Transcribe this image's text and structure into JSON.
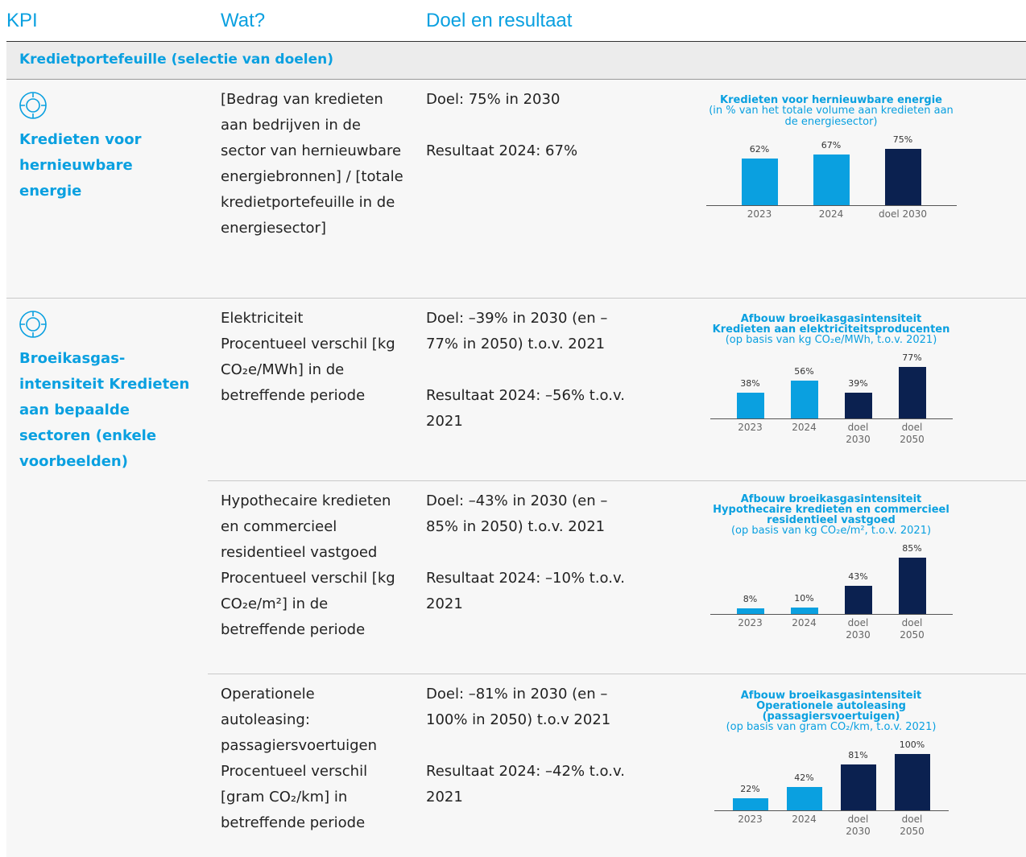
{
  "header": {
    "kpi": "KPI",
    "wat": "Wat?",
    "doel": "Doel en resultaat"
  },
  "section": "Kredietportefeuille (selectie van doelen)",
  "kpis": [
    {
      "label": "Kredieten voor hernieuwbare energie",
      "items": [
        {
          "wat": [
            "[Bedrag van kredieten aan bedrijven in de sector van hernieuwbare energiebronnen] / [totale kredietportefeuille in de energiesector]"
          ],
          "doel": "Doel: 75% in 2030",
          "resultaat": "Resultaat 2024: 67%",
          "chart": {
            "type": "bar",
            "title": [
              "Kredieten voor hernieuwbare energie"
            ],
            "subtitle": "(in % van het totale volume aan kredieten aan de energiesector)",
            "categories": [
              "2023",
              "2024",
              "doel 2030"
            ],
            "values": [
              62,
              67,
              75
            ],
            "value_labels": [
              "62%",
              "67%",
              "75%"
            ],
            "colors": [
              "#0aa0e0",
              "#0aa0e0",
              "#0b2150"
            ]
          }
        }
      ]
    },
    {
      "label": "Broeikasgas-intensiteit Kredieten aan bepaalde sectoren (enkele voorbeelden)",
      "items": [
        {
          "wat": [
            "Elektriciteit",
            "Procentueel verschil [kg CO₂e/MWh] in de betreffende periode"
          ],
          "doel": "Doel: –39% in 2030 (en –77% in 2050) t.o.v. 2021",
          "resultaat": "Resultaat 2024: –56% t.o.v. 2021",
          "chart": {
            "type": "bar",
            "title": [
              "Afbouw broeikasgasintensiteit",
              "Kredieten aan elektriciteitsproducenten"
            ],
            "subtitle": "(op basis van kg CO₂e/MWh, t.o.v. 2021)",
            "categories": [
              "2023",
              "2024",
              "doel 2030",
              "doel 2050"
            ],
            "values": [
              38,
              56,
              39,
              77
            ],
            "value_labels": [
              "38%",
              "56%",
              "39%",
              "77%"
            ],
            "colors": [
              "#0aa0e0",
              "#0aa0e0",
              "#0b2150",
              "#0b2150"
            ]
          }
        },
        {
          "wat": [
            "Hypothecaire kredieten en commercieel residentieel vastgoed",
            "Procentueel verschil [kg CO₂e/m²] in de betreffende periode"
          ],
          "doel": "Doel: –43% in 2030 (en –85% in 2050) t.o.v. 2021",
          "resultaat": "Resultaat 2024: –10% t.o.v. 2021",
          "chart": {
            "type": "bar",
            "title": [
              "Afbouw broeikasgasintensiteit",
              "Hypothecaire kredieten en commercieel residentieel vastgoed"
            ],
            "subtitle": "(op basis van kg CO₂e/m², t.o.v. 2021)",
            "categories": [
              "2023",
              "2024",
              "doel 2030",
              "doel 2050"
            ],
            "values": [
              8,
              10,
              43,
              85
            ],
            "value_labels": [
              "8%",
              "10%",
              "43%",
              "85%"
            ],
            "colors": [
              "#0aa0e0",
              "#0aa0e0",
              "#0b2150",
              "#0b2150"
            ]
          }
        },
        {
          "wat": [
            "Operationele autoleasing: passagiersvoertuigen",
            "Procentueel verschil [gram CO₂/km] in betreffende periode"
          ],
          "doel": "Doel: –81% in 2030 (en –100% in 2050) t.o.v 2021",
          "resultaat": "Resultaat 2024: –42% t.o.v. 2021",
          "chart": {
            "type": "bar",
            "title": [
              "Afbouw broeikasgasintensiteit",
              "Operationele autoleasing (passagiersvoertuigen)"
            ],
            "subtitle": "(op basis van gram CO₂/km, t.o.v. 2021)",
            "categories": [
              "2023",
              "2024",
              "doel 2030",
              "doel 2050"
            ],
            "values": [
              22,
              42,
              81,
              100
            ],
            "value_labels": [
              "22%",
              "42%",
              "81%",
              "100%"
            ],
            "colors": [
              "#0aa0e0",
              "#0aa0e0",
              "#0b2150",
              "#0b2150"
            ]
          }
        }
      ]
    }
  ]
}
